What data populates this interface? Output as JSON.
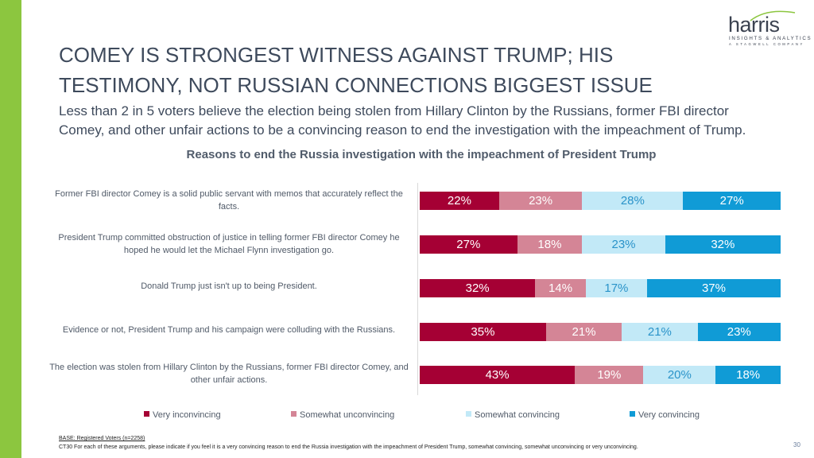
{
  "slide": {
    "title": "COMEY IS STRONGEST WITNESS AGAINST TRUMP; HIS TESTIMONY, NOT RUSSIAN CONNECTIONS BIGGEST ISSUE",
    "subtitle": "Less than 2 in 5 voters believe the election being stolen from Hillary Clinton by the Russians, former FBI director Comey, and other unfair actions to be a convincing reason to end the investigation with the impeachment of Trump.",
    "page_number": "30",
    "accent_color": "#8cc63f"
  },
  "logo": {
    "word": "harris",
    "line1": "INSIGHTS & ANALYTICS",
    "line2": "A STAGWELL COMPANY"
  },
  "footer": {
    "base": "BASE: Registered Voters (n=2258)",
    "note": "CT30 For each of these arguments, please indicate if you feel it is a very convincing reason to end the Russia investigation with the impeachment of President Trump, somewhat convincing, somewhat unconvincing or very unconvincing."
  },
  "chart_data": {
    "type": "bar",
    "orientation": "horizontal",
    "stacked": true,
    "percent_stacked": true,
    "title": "Reasons to end the Russia investigation with the impeachment of President Trump",
    "xlabel": "",
    "ylabel": "",
    "categories": [
      "Former FBI director Comey is a solid public servant with memos that accurately reflect the facts.",
      "President Trump committed obstruction of justice in telling former FBI director Comey he hoped he would let the Michael Flynn investigation go.",
      "Donald Trump just isn't up to being President.",
      "Evidence or not, President Trump and his campaign were colluding with the Russians.",
      "The election was stolen from Hillary Clinton by the Russians, former FBI director Comey, and other unfair actions."
    ],
    "series": [
      {
        "name": "Very inconvincing",
        "color": "#a50034",
        "label_color": "#ffffff",
        "values": [
          22,
          27,
          32,
          35,
          43
        ]
      },
      {
        "name": "Somewhat unconvincing",
        "color": "#d48596",
        "label_color": "#ffffff",
        "values": [
          23,
          18,
          14,
          21,
          19
        ]
      },
      {
        "name": "Somewhat convincing",
        "color": "#c2e9f7",
        "label_color": "#2a93c9",
        "values": [
          28,
          23,
          17,
          21,
          20
        ]
      },
      {
        "name": "Very convincing",
        "color": "#109bd6",
        "label_color": "#ffffff",
        "values": [
          27,
          32,
          37,
          23,
          18
        ]
      }
    ],
    "value_suffix": "%",
    "legend_position": "bottom"
  }
}
